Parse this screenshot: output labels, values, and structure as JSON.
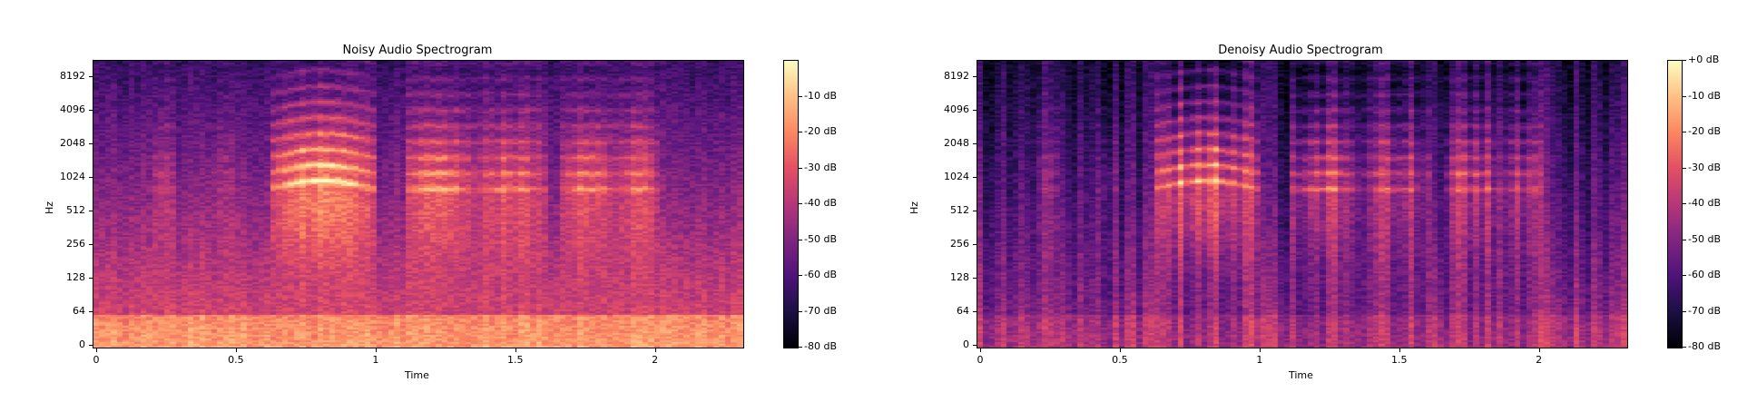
{
  "chart_data": [
    {
      "type": "heatmap",
      "title": "Noisy Audio Spectrogram",
      "xlabel": "Time",
      "ylabel": "Hz",
      "xlim": [
        0,
        2.3
      ],
      "x_ticks": [
        "0",
        "0.5",
        "1",
        "1.5",
        "2"
      ],
      "y_scale": "log",
      "y_ticks": [
        "0",
        "64",
        "128",
        "256",
        "512",
        "1024",
        "2048",
        "4096",
        "8192"
      ],
      "colormap": "magma",
      "colorbar": {
        "range_db": [
          -80,
          0
        ],
        "tick_labels": [
          "-10 dB",
          "-20 dB",
          "-30 dB",
          "-40 dB",
          "-50 dB",
          "-60 dB",
          "-70 dB",
          "-80 dB"
        ]
      },
      "noise_floor": "high"
    },
    {
      "type": "heatmap",
      "title": "Denoisy Audio Spectrogram",
      "xlabel": "Time",
      "ylabel": "Hz",
      "xlim": [
        0,
        2.3
      ],
      "x_ticks": [
        "0",
        "0.5",
        "1",
        "1.5",
        "2"
      ],
      "y_scale": "log",
      "y_ticks": [
        "0",
        "64",
        "128",
        "256",
        "512",
        "1024",
        "2048",
        "4096",
        "8192"
      ],
      "colormap": "magma",
      "colorbar": {
        "range_db": [
          -80,
          0
        ],
        "tick_labels": [
          "+0 dB",
          "-10 dB",
          "-20 dB",
          "-30 dB",
          "-40 dB",
          "-50 dB",
          "-60 dB",
          "-70 dB",
          "-80 dB"
        ]
      },
      "noise_floor": "low"
    }
  ]
}
